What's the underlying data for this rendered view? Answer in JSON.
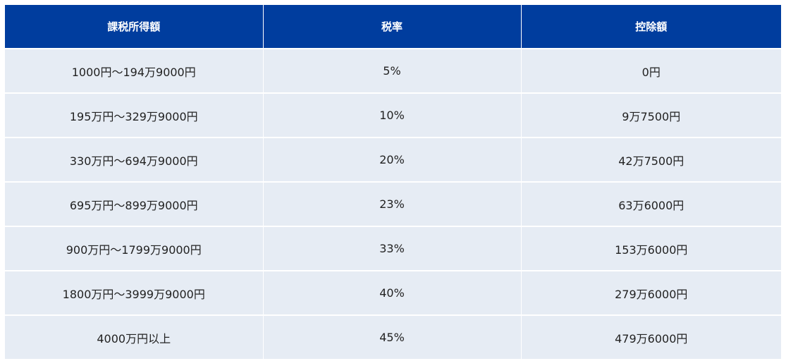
{
  "headers": [
    "課税所得額",
    "税率",
    "控除額"
  ],
  "rows": [
    [
      "1000円～194万9000円",
      "5%",
      "0円"
    ],
    [
      "195万円～329万9000円",
      "10%",
      "9万7500円"
    ],
    [
      "330万円～694万9000円",
      "20%",
      "42万7500円"
    ],
    [
      "695万円～899万9000円",
      "23%",
      "63万6000円"
    ],
    [
      "900万円～1799万9000円",
      "33%",
      "153万6000円"
    ],
    [
      "1800万円～3999万9000円",
      "40%",
      "279万6000円"
    ],
    [
      "4000万円以上",
      "45%",
      "479万6000円"
    ]
  ],
  "colors": {
    "header_bg": "#003d9e",
    "header_text": "#ffffff",
    "row_bg": "#e6ecf4",
    "cell_text": "#222222"
  }
}
